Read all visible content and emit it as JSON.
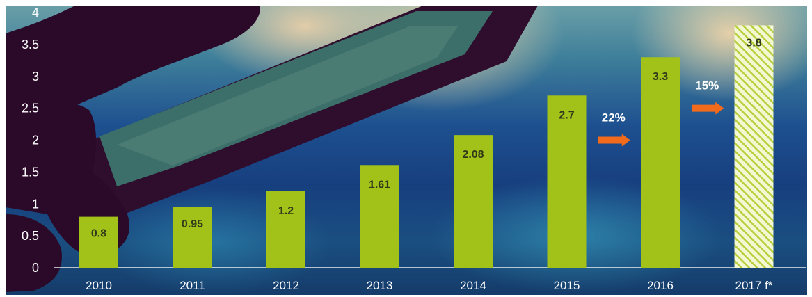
{
  "chart_data": {
    "type": "bar",
    "categories": [
      "2010",
      "2011",
      "2012",
      "2013",
      "2014",
      "2015",
      "2016",
      "2017 f*"
    ],
    "values": [
      0.8,
      0.95,
      1.2,
      1.61,
      2.08,
      2.7,
      3.3,
      3.8
    ],
    "value_labels": [
      "0.8",
      "0.95",
      "1.2",
      "1.61",
      "2.08",
      "2.7",
      "3.3",
      "3.8"
    ],
    "forecast_index": 7,
    "ylim": [
      0,
      4
    ],
    "yticks": [
      0,
      0.5,
      1,
      1.5,
      2,
      2.5,
      3,
      3.5,
      4
    ],
    "ytick_labels": [
      "0",
      "0.5",
      "1",
      "1.5",
      "2",
      "2.5",
      "3",
      "3.5",
      "4"
    ],
    "grid": false,
    "title": "",
    "xlabel": "",
    "ylabel": "",
    "annotations": [
      {
        "text": "22%",
        "after_category": "2015",
        "y": 2.0
      },
      {
        "text": "15%",
        "after_category": "2016",
        "y": 2.5
      }
    ],
    "colors": {
      "bar": "#a2c21a",
      "forecast_hatch": "#d8e88a",
      "arrow": "#f26b1d",
      "text": "#ffffff",
      "value_text": "#2e3a1a",
      "axis": "#e8eef2"
    }
  }
}
